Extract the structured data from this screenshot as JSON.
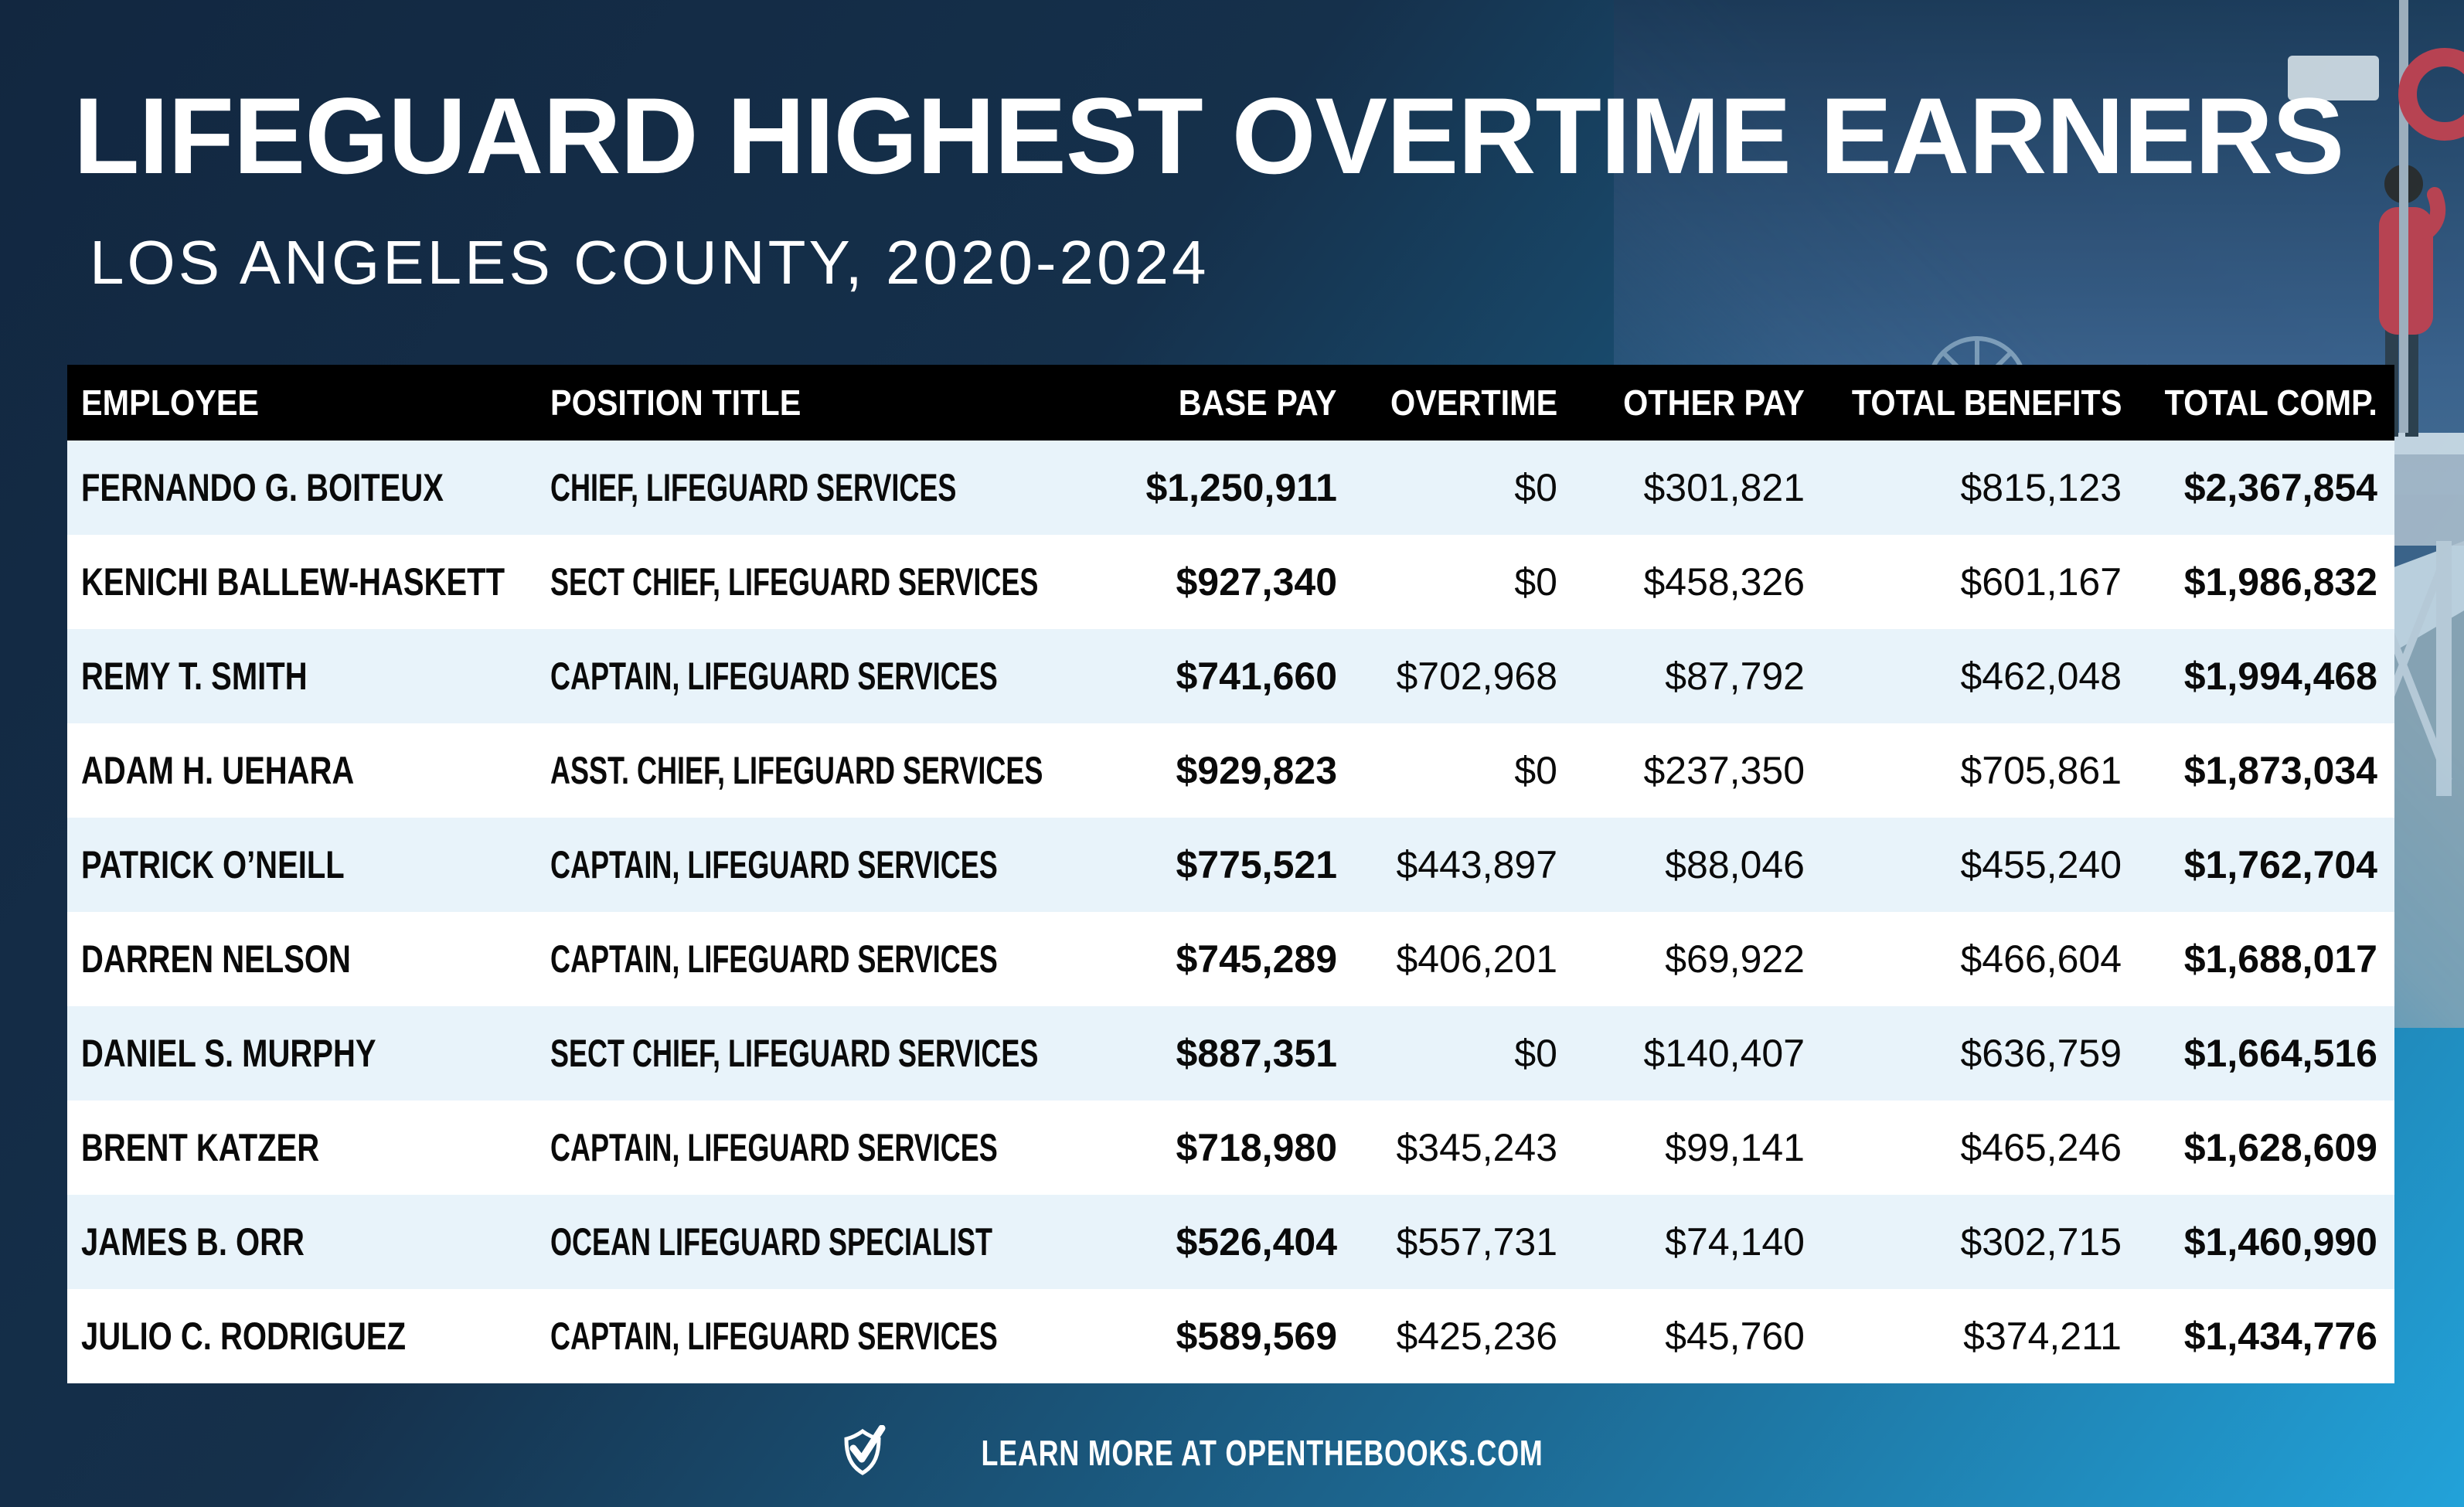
{
  "title": "LIFEGUARD HIGHEST OVERTIME EARNERS",
  "subtitle": "LOS ANGELES COUNTY, 2020-2024",
  "chart_data": {
    "type": "table",
    "title": "LIFEGUARD HIGHEST OVERTIME EARNERS",
    "subtitle": "LOS ANGELES COUNTY, 2020-2024",
    "columns": [
      "EMPLOYEE",
      "POSITION TITLE",
      "BASE PAY",
      "OVERTIME",
      "OTHER PAY",
      "TOTAL BENEFITS",
      "TOTAL COMP."
    ],
    "rows": [
      [
        "FERNANDO G. BOITEUX",
        "CHIEF, LIFEGUARD SERVICES",
        "$1,250,911",
        "$0",
        "$301,821",
        "$815,123",
        "$2,367,854"
      ],
      [
        "KENICHI BALLEW-HASKETT",
        "SECT CHIEF, LIFEGUARD SERVICES",
        "$927,340",
        "$0",
        "$458,326",
        "$601,167",
        "$1,986,832"
      ],
      [
        "REMY T. SMITH",
        "CAPTAIN, LIFEGUARD SERVICES",
        "$741,660",
        "$702,968",
        "$87,792",
        "$462,048",
        "$1,994,468"
      ],
      [
        "ADAM H. UEHARA",
        "ASST. CHIEF, LIFEGUARD SERVICES",
        "$929,823",
        "$0",
        "$237,350",
        "$705,861",
        "$1,873,034"
      ],
      [
        "PATRICK O’NEILL",
        "CAPTAIN, LIFEGUARD SERVICES",
        "$775,521",
        "$443,897",
        "$88,046",
        "$455,240",
        "$1,762,704"
      ],
      [
        "DARREN NELSON",
        "CAPTAIN, LIFEGUARD SERVICES",
        "$745,289",
        "$406,201",
        "$69,922",
        "$466,604",
        "$1,688,017"
      ],
      [
        "DANIEL S. MURPHY",
        "SECT CHIEF, LIFEGUARD SERVICES",
        "$887,351",
        "$0",
        "$140,407",
        "$636,759",
        "$1,664,516"
      ],
      [
        "BRENT KATZER",
        "CAPTAIN, LIFEGUARD SERVICES",
        "$718,980",
        "$345,243",
        "$99,141",
        "$465,246",
        "$1,628,609"
      ],
      [
        "JAMES B. ORR",
        "OCEAN LIFEGUARD SPECIALIST",
        "$526,404",
        "$557,731",
        "$74,140",
        "$302,715",
        "$1,460,990"
      ],
      [
        "JULIO C. RODRIGUEZ",
        "CAPTAIN, LIFEGUARD SERVICES",
        "$589,569",
        "$425,236",
        "$45,760",
        "$374,211",
        "$1,434,776"
      ]
    ],
    "legend_position": "none",
    "grid": false
  },
  "footer": {
    "text": "LEARN MORE AT OPENTHEBOOKS.COM",
    "logo_icon": "shield-check-icon"
  },
  "colors": {
    "background_top_left": "#122740",
    "background_bottom_right": "#22a2d9",
    "header_bg": "#000000",
    "row_alt_bg": "#e8f3fa",
    "row_bg": "#ffffff",
    "text_light": "#ffffff",
    "text_dark": "#0a0a0a",
    "lifeguard_red": "#c5404d",
    "towel_green": "#2ea156"
  }
}
